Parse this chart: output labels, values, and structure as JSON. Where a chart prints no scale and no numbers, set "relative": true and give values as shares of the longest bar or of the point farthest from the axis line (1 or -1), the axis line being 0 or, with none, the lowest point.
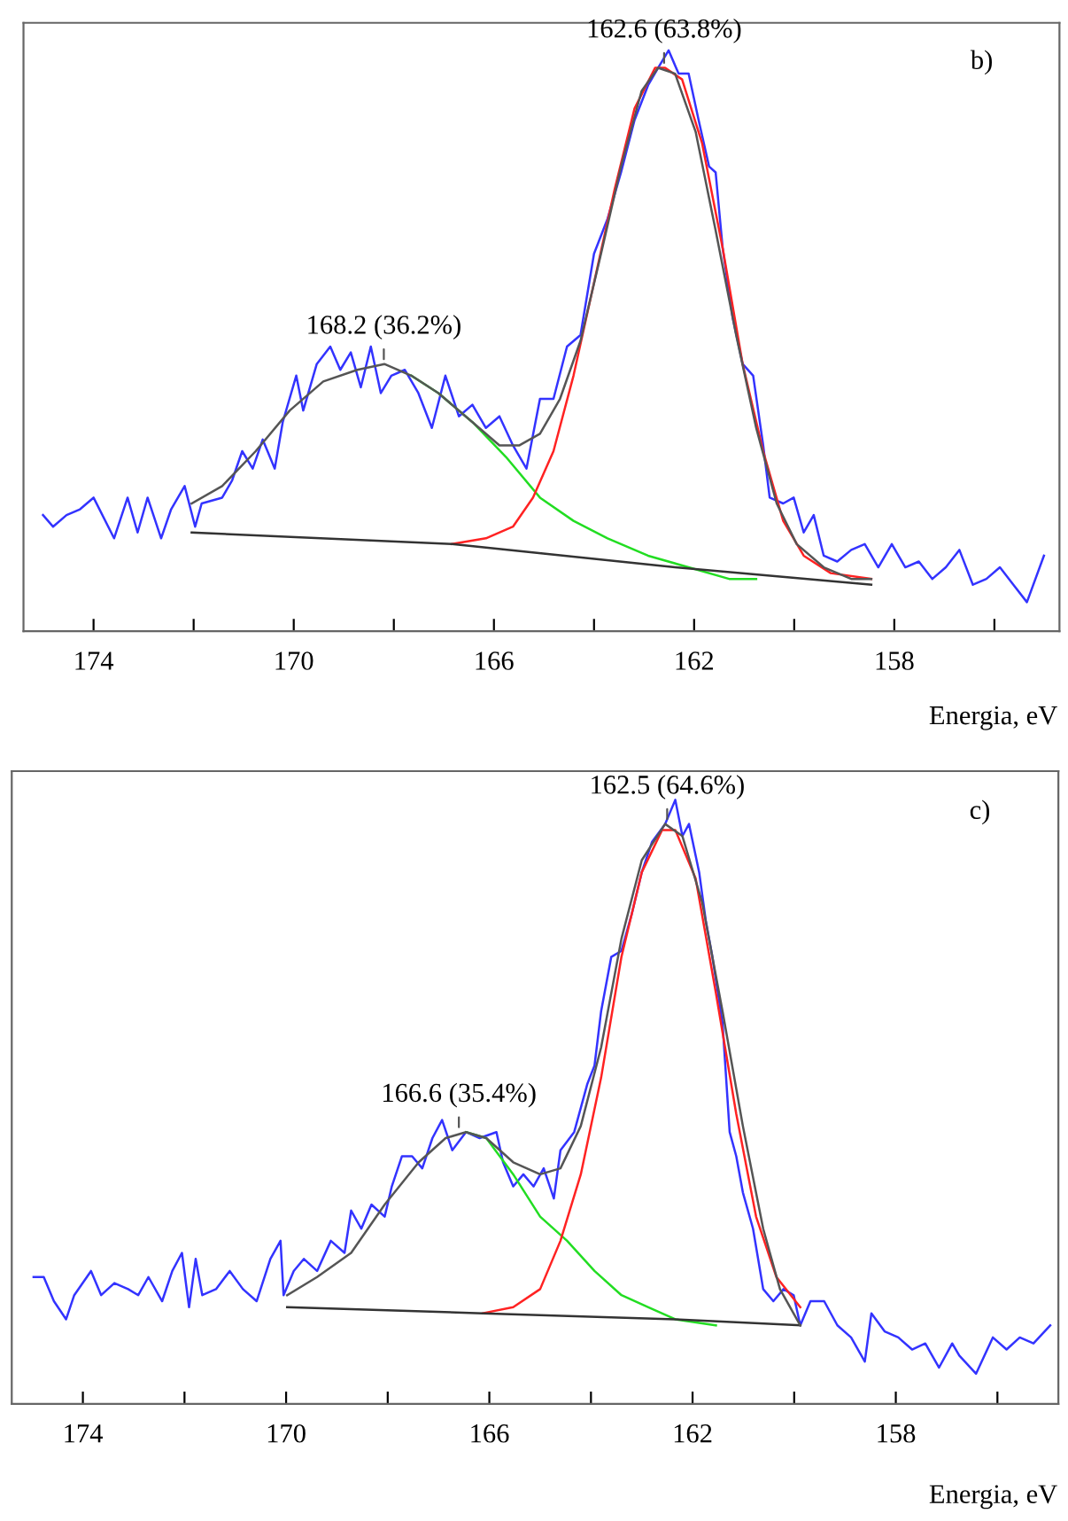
{
  "chart_data": [
    {
      "type": "line",
      "relative": true,
      "xlabel": "Energia, eV",
      "xlim": [
        175.4,
        154.7
      ],
      "xticks": [
        174,
        {
          "value": 172,
          "label": null
        },
        170,
        {
          "value": 168,
          "label": null
        },
        166,
        {
          "value": 164,
          "label": null
        },
        162,
        {
          "value": 160,
          "label": null
        },
        158,
        {
          "value": 156,
          "label": null
        }
      ],
      "tick_labels": "x",
      "grid": false,
      "marker": "none",
      "line_style": "solid",
      "annotations": [
        "b)",
        {
          "text": "162.6 (63.8%)",
          "x": 162.6,
          "y": 0.97
        },
        {
          "text": "168.2 (36.2%)",
          "x": 168.2,
          "y": 0.46
        }
      ],
      "series": [
        {
          "color": "#3333ff",
          "x": [
            175.01,
            174.81,
            174.54,
            174.27,
            174.0,
            173.59,
            173.32,
            173.12,
            172.92,
            172.65,
            172.45,
            172.18,
            171.97,
            171.84,
            171.43,
            171.23,
            171.03,
            170.82,
            170.62,
            170.38,
            170.22,
            169.95,
            169.81,
            169.54,
            169.27,
            169.07,
            168.86,
            168.66,
            168.46,
            168.26,
            168.05,
            167.78,
            167.51,
            167.24,
            166.97,
            166.7,
            166.43,
            166.16,
            165.89,
            165.62,
            165.35,
            165.08,
            164.81,
            164.54,
            164.27,
            164.0,
            163.73,
            163.46,
            163.19,
            162.92,
            162.72,
            162.51,
            162.31,
            162.11,
            161.91,
            161.7,
            161.57,
            161.43,
            161.23,
            161.03,
            160.82,
            160.62,
            160.49,
            160.22,
            160.01,
            159.81,
            159.61,
            159.41,
            159.14,
            158.86,
            158.59,
            158.32,
            158.05,
            157.78,
            157.51,
            157.24,
            156.97,
            156.7,
            156.43,
            156.16,
            155.89,
            155.62,
            155.35,
            155.01
          ],
          "values": [
            0.2,
            0.18,
            0.2,
            0.21,
            0.23,
            0.16,
            0.23,
            0.17,
            0.23,
            0.16,
            0.21,
            0.25,
            0.18,
            0.22,
            0.23,
            0.26,
            0.31,
            0.28,
            0.33,
            0.28,
            0.36,
            0.44,
            0.38,
            0.46,
            0.49,
            0.45,
            0.48,
            0.42,
            0.49,
            0.41,
            0.44,
            0.45,
            0.41,
            0.35,
            0.44,
            0.37,
            0.39,
            0.35,
            0.37,
            0.32,
            0.28,
            0.4,
            0.4,
            0.49,
            0.51,
            0.65,
            0.71,
            0.79,
            0.88,
            0.94,
            0.97,
            1.0,
            0.96,
            0.96,
            0.88,
            0.8,
            0.79,
            0.66,
            0.54,
            0.46,
            0.44,
            0.32,
            0.23,
            0.22,
            0.23,
            0.17,
            0.2,
            0.13,
            0.12,
            0.14,
            0.15,
            0.11,
            0.15,
            0.11,
            0.12,
            0.09,
            0.11,
            0.14,
            0.08,
            0.09,
            0.11,
            0.08,
            0.05,
            0.13
          ]
        },
        {
          "color": "#555555",
          "x": [
            172.04,
            171.43,
            170.76,
            170.08,
            169.41,
            168.73,
            168.19,
            167.65,
            167.11,
            166.43,
            165.89,
            165.49,
            165.08,
            164.68,
            164.27,
            163.86,
            163.46,
            163.05,
            162.72,
            162.38,
            161.97,
            161.57,
            161.16,
            160.76,
            160.35,
            159.95,
            159.41,
            158.86,
            158.46
          ],
          "values": [
            0.22,
            0.25,
            0.31,
            0.38,
            0.43,
            0.45,
            0.46,
            0.44,
            0.41,
            0.36,
            0.32,
            0.32,
            0.34,
            0.4,
            0.5,
            0.65,
            0.8,
            0.93,
            0.97,
            0.96,
            0.86,
            0.69,
            0.51,
            0.35,
            0.22,
            0.15,
            0.11,
            0.09,
            0.09
          ]
        },
        {
          "color": "#22dd22",
          "x": [
            167.65,
            167.11,
            166.43,
            165.76,
            165.08,
            164.41,
            163.73,
            162.92,
            162.11,
            161.3,
            160.76
          ],
          "values": [
            0.44,
            0.41,
            0.36,
            0.3,
            0.23,
            0.19,
            0.16,
            0.13,
            0.11,
            0.09,
            0.09
          ]
        },
        {
          "color": "#ff2222",
          "x": [
            166.84,
            166.16,
            165.62,
            165.22,
            164.81,
            164.41,
            164.0,
            163.59,
            163.19,
            162.78,
            162.58,
            162.24,
            161.84,
            161.43,
            161.03,
            160.62,
            160.22,
            159.81,
            159.27,
            158.46
          ],
          "values": [
            0.15,
            0.16,
            0.18,
            0.23,
            0.31,
            0.44,
            0.6,
            0.76,
            0.9,
            0.97,
            0.97,
            0.95,
            0.84,
            0.66,
            0.46,
            0.31,
            0.19,
            0.13,
            0.1,
            0.09
          ]
        },
        {
          "color": "#333333",
          "x": [
            172.04,
            166.84,
            162.38,
            158.46
          ],
          "values": [
            0.17,
            0.15,
            0.11,
            0.08
          ]
        }
      ]
    },
    {
      "type": "line",
      "relative": true,
      "xlabel": "Energia, eV",
      "xlim": [
        175.4,
        154.8
      ],
      "xticks": [
        174,
        {
          "value": 172,
          "label": null
        },
        170,
        {
          "value": 168,
          "label": null
        },
        166,
        {
          "value": 164,
          "label": null
        },
        162,
        {
          "value": 160,
          "label": null
        },
        158,
        {
          "value": 156,
          "label": null
        }
      ],
      "tick_labels": "x",
      "grid": false,
      "marker": "none",
      "line_style": "solid",
      "annotations": [
        "c)",
        {
          "text": "162.5 (64.6%)",
          "x": 162.5,
          "y": 0.96
        },
        {
          "text": "166.6 (35.4%)",
          "x": 166.6,
          "y": 0.45
        }
      ],
      "series": [
        {
          "color": "#3333ff",
          "x": [
            174.97,
            174.77,
            174.57,
            174.33,
            174.17,
            173.84,
            173.64,
            173.38,
            173.11,
            172.91,
            172.71,
            172.44,
            172.24,
            172.05,
            171.91,
            171.78,
            171.65,
            171.38,
            171.11,
            170.85,
            170.58,
            170.31,
            170.11,
            170.05,
            169.85,
            169.65,
            169.39,
            169.12,
            168.85,
            168.72,
            168.52,
            168.32,
            168.06,
            167.92,
            167.72,
            167.52,
            167.32,
            167.12,
            166.93,
            166.73,
            166.46,
            166.19,
            165.86,
            165.73,
            165.53,
            165.33,
            165.13,
            164.93,
            164.73,
            164.6,
            164.33,
            164.07,
            163.93,
            163.8,
            163.6,
            163.4,
            163.2,
            163.0,
            162.8,
            162.54,
            162.34,
            162.2,
            162.07,
            161.87,
            161.74,
            161.61,
            161.41,
            161.27,
            161.14,
            161.01,
            160.81,
            160.61,
            160.41,
            160.21,
            160.01,
            159.88,
            159.68,
            159.41,
            159.15,
            158.88,
            158.61,
            158.48,
            158.22,
            157.95,
            157.68,
            157.42,
            157.15,
            156.89,
            156.75,
            156.42,
            156.09,
            155.82,
            155.56,
            155.29,
            154.96
          ],
          "values": [
            0.21,
            0.21,
            0.17,
            0.14,
            0.18,
            0.22,
            0.18,
            0.2,
            0.19,
            0.18,
            0.21,
            0.17,
            0.22,
            0.25,
            0.16,
            0.24,
            0.18,
            0.19,
            0.22,
            0.19,
            0.17,
            0.24,
            0.27,
            0.18,
            0.22,
            0.24,
            0.22,
            0.27,
            0.25,
            0.32,
            0.29,
            0.33,
            0.31,
            0.36,
            0.41,
            0.41,
            0.39,
            0.44,
            0.47,
            0.42,
            0.45,
            0.44,
            0.45,
            0.4,
            0.36,
            0.38,
            0.36,
            0.39,
            0.34,
            0.42,
            0.45,
            0.53,
            0.56,
            0.65,
            0.74,
            0.75,
            0.81,
            0.88,
            0.93,
            0.96,
            1.0,
            0.94,
            0.96,
            0.88,
            0.8,
            0.74,
            0.63,
            0.45,
            0.41,
            0.35,
            0.29,
            0.19,
            0.17,
            0.19,
            0.18,
            0.13,
            0.17,
            0.17,
            0.13,
            0.11,
            0.07,
            0.15,
            0.12,
            0.11,
            0.09,
            0.1,
            0.06,
            0.1,
            0.08,
            0.05,
            0.11,
            0.09,
            0.11,
            0.1,
            0.13
          ]
        },
        {
          "color": "#555555",
          "x": [
            169.98,
            169.39,
            168.72,
            168.06,
            167.39,
            166.86,
            166.46,
            166.06,
            165.53,
            165.0,
            164.6,
            164.2,
            163.8,
            163.4,
            163.0,
            162.54,
            162.2,
            161.81,
            161.41,
            161.01,
            160.61,
            160.28,
            159.88
          ],
          "values": [
            0.18,
            0.21,
            0.25,
            0.33,
            0.4,
            0.44,
            0.45,
            0.44,
            0.4,
            0.38,
            0.39,
            0.46,
            0.59,
            0.77,
            0.9,
            0.96,
            0.94,
            0.83,
            0.65,
            0.46,
            0.29,
            0.19,
            0.13
          ]
        },
        {
          "color": "#22dd22",
          "x": [
            166.46,
            166.06,
            165.53,
            165.0,
            164.47,
            163.93,
            163.4,
            162.87,
            162.34,
            161.54
          ],
          "values": [
            0.45,
            0.44,
            0.38,
            0.31,
            0.27,
            0.22,
            0.18,
            0.16,
            0.14,
            0.13
          ]
        },
        {
          "color": "#ff2222",
          "x": [
            166.13,
            165.53,
            165.0,
            164.6,
            164.2,
            163.8,
            163.4,
            163.0,
            162.6,
            162.34,
            161.94,
            161.54,
            161.14,
            160.75,
            160.35,
            159.88
          ],
          "values": [
            0.15,
            0.16,
            0.19,
            0.27,
            0.38,
            0.54,
            0.74,
            0.88,
            0.95,
            0.95,
            0.87,
            0.68,
            0.48,
            0.31,
            0.21,
            0.16
          ]
        },
        {
          "color": "#333333",
          "x": [
            169.98,
            166.13,
            162.34,
            159.88
          ],
          "values": [
            0.16,
            0.15,
            0.14,
            0.13
          ]
        }
      ]
    }
  ]
}
